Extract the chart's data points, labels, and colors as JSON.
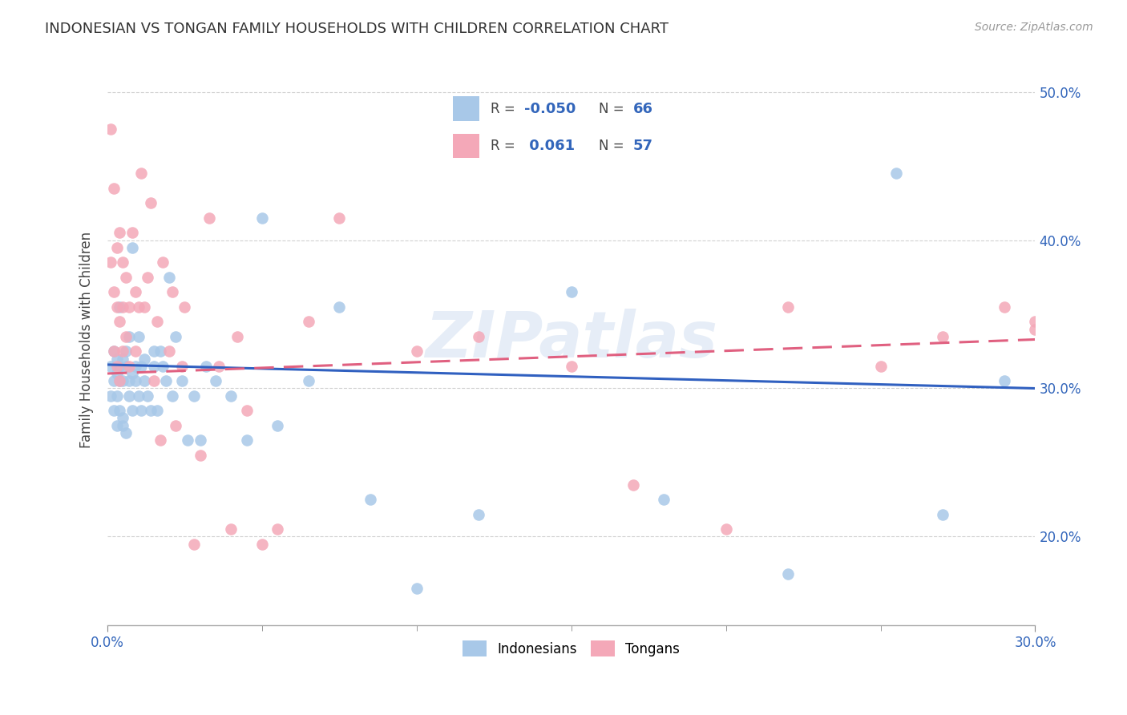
{
  "title": "INDONESIAN VS TONGAN FAMILY HOUSEHOLDS WITH CHILDREN CORRELATION CHART",
  "source": "Source: ZipAtlas.com",
  "xmin": 0.0,
  "xmax": 0.3,
  "ymin": 0.14,
  "ymax": 0.525,
  "x_tick_positions": [
    0.0,
    0.3
  ],
  "x_tick_labels": [
    "0.0%",
    "30.0%"
  ],
  "y_tick_positions": [
    0.2,
    0.3,
    0.4,
    0.5
  ],
  "y_tick_labels": [
    "20.0%",
    "30.0%",
    "40.0%",
    "50.0%"
  ],
  "indonesian_color": "#a8c8e8",
  "tongan_color": "#f4a8b8",
  "indonesian_line_color": "#3060c0",
  "tongan_line_color": "#e06080",
  "r_indo": -0.05,
  "n_indo": 66,
  "r_tong": 0.061,
  "n_tong": 57,
  "watermark": "ZIPatlas",
  "indonesian_x": [
    0.001,
    0.001,
    0.002,
    0.002,
    0.002,
    0.003,
    0.003,
    0.003,
    0.003,
    0.004,
    0.004,
    0.004,
    0.004,
    0.005,
    0.005,
    0.005,
    0.005,
    0.006,
    0.006,
    0.006,
    0.007,
    0.007,
    0.007,
    0.008,
    0.008,
    0.008,
    0.009,
    0.009,
    0.01,
    0.01,
    0.011,
    0.011,
    0.012,
    0.012,
    0.013,
    0.014,
    0.015,
    0.015,
    0.016,
    0.017,
    0.018,
    0.019,
    0.02,
    0.021,
    0.022,
    0.024,
    0.026,
    0.028,
    0.03,
    0.032,
    0.035,
    0.04,
    0.045,
    0.05,
    0.055,
    0.065,
    0.075,
    0.085,
    0.1,
    0.12,
    0.15,
    0.18,
    0.22,
    0.255,
    0.27,
    0.29
  ],
  "indonesian_y": [
    0.315,
    0.295,
    0.305,
    0.285,
    0.325,
    0.275,
    0.31,
    0.295,
    0.32,
    0.355,
    0.305,
    0.285,
    0.315,
    0.32,
    0.275,
    0.305,
    0.28,
    0.315,
    0.325,
    0.27,
    0.305,
    0.335,
    0.295,
    0.285,
    0.395,
    0.31,
    0.305,
    0.315,
    0.295,
    0.335,
    0.315,
    0.285,
    0.32,
    0.305,
    0.295,
    0.285,
    0.325,
    0.315,
    0.285,
    0.325,
    0.315,
    0.305,
    0.375,
    0.295,
    0.335,
    0.305,
    0.265,
    0.295,
    0.265,
    0.315,
    0.305,
    0.295,
    0.265,
    0.415,
    0.275,
    0.305,
    0.355,
    0.225,
    0.165,
    0.215,
    0.365,
    0.225,
    0.175,
    0.445,
    0.215,
    0.305
  ],
  "tongan_x": [
    0.001,
    0.001,
    0.002,
    0.002,
    0.002,
    0.003,
    0.003,
    0.003,
    0.004,
    0.004,
    0.004,
    0.005,
    0.005,
    0.005,
    0.006,
    0.006,
    0.007,
    0.007,
    0.008,
    0.009,
    0.009,
    0.01,
    0.011,
    0.012,
    0.013,
    0.014,
    0.015,
    0.016,
    0.017,
    0.018,
    0.02,
    0.021,
    0.022,
    0.024,
    0.025,
    0.028,
    0.03,
    0.033,
    0.036,
    0.04,
    0.042,
    0.045,
    0.05,
    0.055,
    0.065,
    0.075,
    0.1,
    0.12,
    0.15,
    0.17,
    0.2,
    0.22,
    0.25,
    0.27,
    0.29,
    0.3,
    0.3
  ],
  "tongan_y": [
    0.475,
    0.385,
    0.435,
    0.365,
    0.325,
    0.395,
    0.355,
    0.315,
    0.405,
    0.345,
    0.305,
    0.385,
    0.355,
    0.325,
    0.335,
    0.375,
    0.315,
    0.355,
    0.405,
    0.325,
    0.365,
    0.355,
    0.445,
    0.355,
    0.375,
    0.425,
    0.305,
    0.345,
    0.265,
    0.385,
    0.325,
    0.365,
    0.275,
    0.315,
    0.355,
    0.195,
    0.255,
    0.415,
    0.315,
    0.205,
    0.335,
    0.285,
    0.195,
    0.205,
    0.345,
    0.415,
    0.325,
    0.335,
    0.315,
    0.235,
    0.205,
    0.355,
    0.315,
    0.335,
    0.355,
    0.345,
    0.34
  ]
}
